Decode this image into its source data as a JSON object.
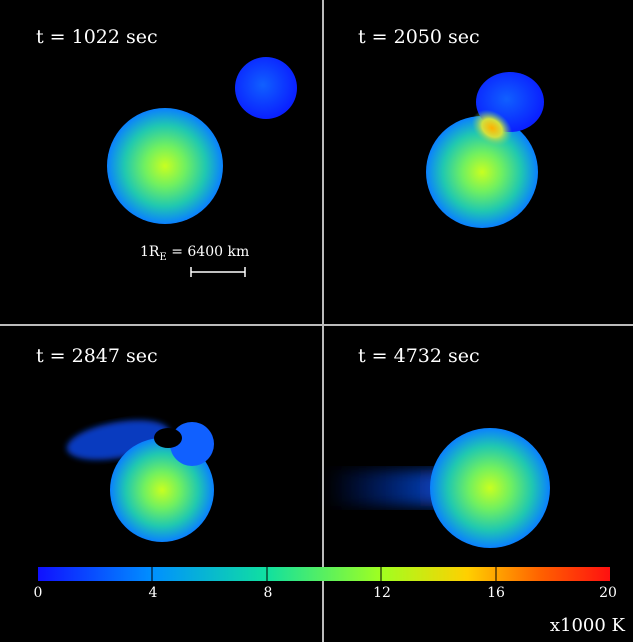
{
  "panels": [
    {
      "time_label": "t = 1022 sec"
    },
    {
      "time_label": "t = 2050 sec"
    },
    {
      "time_label": "t = 2847 sec"
    },
    {
      "time_label": "t = 4732 sec"
    }
  ],
  "scale_bar": {
    "label_prefix": "1R",
    "label_sub": "E",
    "label_suffix": " = 6400 km"
  },
  "colorbar": {
    "ticks": [
      "0",
      "4",
      "8",
      "12",
      "16",
      "20"
    ],
    "unit": "x1000 K",
    "colors": [
      "#1010ff",
      "#0090ff",
      "#10e0a0",
      "#a0ff20",
      "#ffd000",
      "#ff6000",
      "#ff1010"
    ]
  }
}
